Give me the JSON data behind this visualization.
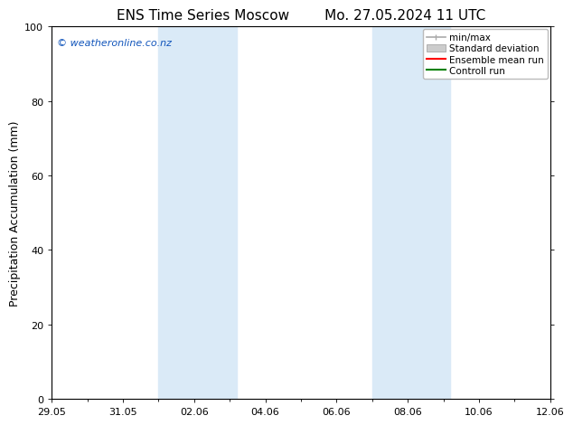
{
  "title_left": "ENS Time Series Moscow",
  "title_right": "Mo. 27.05.2024 11 UTC",
  "ylabel": "Precipitation Accumulation (mm)",
  "watermark": "© weatheronline.co.nz",
  "watermark_color": "#1155bb",
  "ylim": [
    0,
    100
  ],
  "yticks": [
    0,
    20,
    40,
    60,
    80,
    100
  ],
  "x_tick_labels": [
    "29.05",
    "31.05",
    "02.06",
    "04.06",
    "06.06",
    "08.06",
    "10.06",
    "12.06"
  ],
  "x_tick_positions": [
    0,
    2,
    4,
    6,
    8,
    10,
    12,
    14
  ],
  "xlim": [
    0,
    14
  ],
  "shaded_regions": [
    {
      "x_start": 3.0,
      "x_end": 5.2
    },
    {
      "x_start": 9.0,
      "x_end": 11.2
    }
  ],
  "shaded_color": "#daeaf7",
  "background_color": "#ffffff",
  "plot_bg_color": "#ffffff",
  "legend_items": [
    {
      "label": "min/max",
      "color": "#aaaaaa",
      "style": "line_caps"
    },
    {
      "label": "Standard deviation",
      "color": "#cccccc",
      "style": "rect"
    },
    {
      "label": "Ensemble mean run",
      "color": "#ff0000",
      "style": "line"
    },
    {
      "label": "Controll run",
      "color": "#008000",
      "style": "line"
    }
  ],
  "title_fontsize": 11,
  "axis_fontsize": 9,
  "tick_fontsize": 8,
  "watermark_fontsize": 8,
  "legend_fontsize": 7.5
}
